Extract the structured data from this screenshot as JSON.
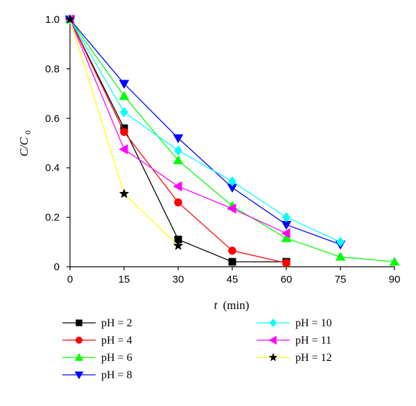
{
  "chart_data": {
    "type": "line",
    "x_label_var": "t",
    "x_label_unit": "(min)",
    "y_label_main": "C/C",
    "y_label_sub": "0",
    "xlim": [
      0,
      90
    ],
    "ylim": [
      0,
      1.0
    ],
    "x_ticks": [
      0,
      15,
      30,
      45,
      60,
      75,
      90
    ],
    "y_ticks": [
      0,
      0.2,
      0.4,
      0.6,
      0.8,
      1.0
    ],
    "y_tick_labels": [
      "0",
      "0.2",
      "0.4",
      "0.6",
      "0.8",
      "1.0"
    ],
    "grid": false,
    "legend_position": "bottom",
    "series": [
      {
        "name": "pH = 2",
        "color": "#000000",
        "marker": "square",
        "x": [
          0,
          15,
          30,
          45,
          60
        ],
        "y": [
          1.0,
          0.56,
          0.11,
          0.02,
          0.02
        ]
      },
      {
        "name": "pH = 4",
        "color": "#ff0000",
        "marker": "circle",
        "x": [
          0,
          15,
          30,
          45,
          60
        ],
        "y": [
          1.0,
          0.545,
          0.26,
          0.065,
          0.015
        ]
      },
      {
        "name": "pH = 6",
        "color": "#00ff00",
        "marker": "triangle-up",
        "x": [
          0,
          15,
          30,
          45,
          60,
          75,
          90
        ],
        "y": [
          1.0,
          0.69,
          0.43,
          0.245,
          0.115,
          0.04,
          0.02
        ]
      },
      {
        "name": "pH = 8",
        "color": "#0000ff",
        "marker": "triangle-down",
        "x": [
          0,
          15,
          30,
          45,
          60,
          75
        ],
        "y": [
          1.0,
          0.74,
          0.52,
          0.32,
          0.17,
          0.09
        ]
      },
      {
        "name": "pH = 10",
        "color": "#00ffff",
        "marker": "diamond",
        "x": [
          0,
          15,
          30,
          45,
          60,
          75
        ],
        "y": [
          1.0,
          0.625,
          0.47,
          0.345,
          0.2,
          0.1
        ]
      },
      {
        "name": "pH = 11",
        "color": "#ff00ff",
        "marker": "triangle-left",
        "x": [
          0,
          15,
          30,
          45,
          60
        ],
        "y": [
          1.0,
          0.475,
          0.325,
          0.235,
          0.135
        ]
      },
      {
        "name": "pH = 12",
        "color": "#ffff00",
        "marker": "star",
        "x": [
          0,
          15,
          30
        ],
        "y": [
          1.0,
          0.295,
          0.085
        ]
      }
    ]
  }
}
